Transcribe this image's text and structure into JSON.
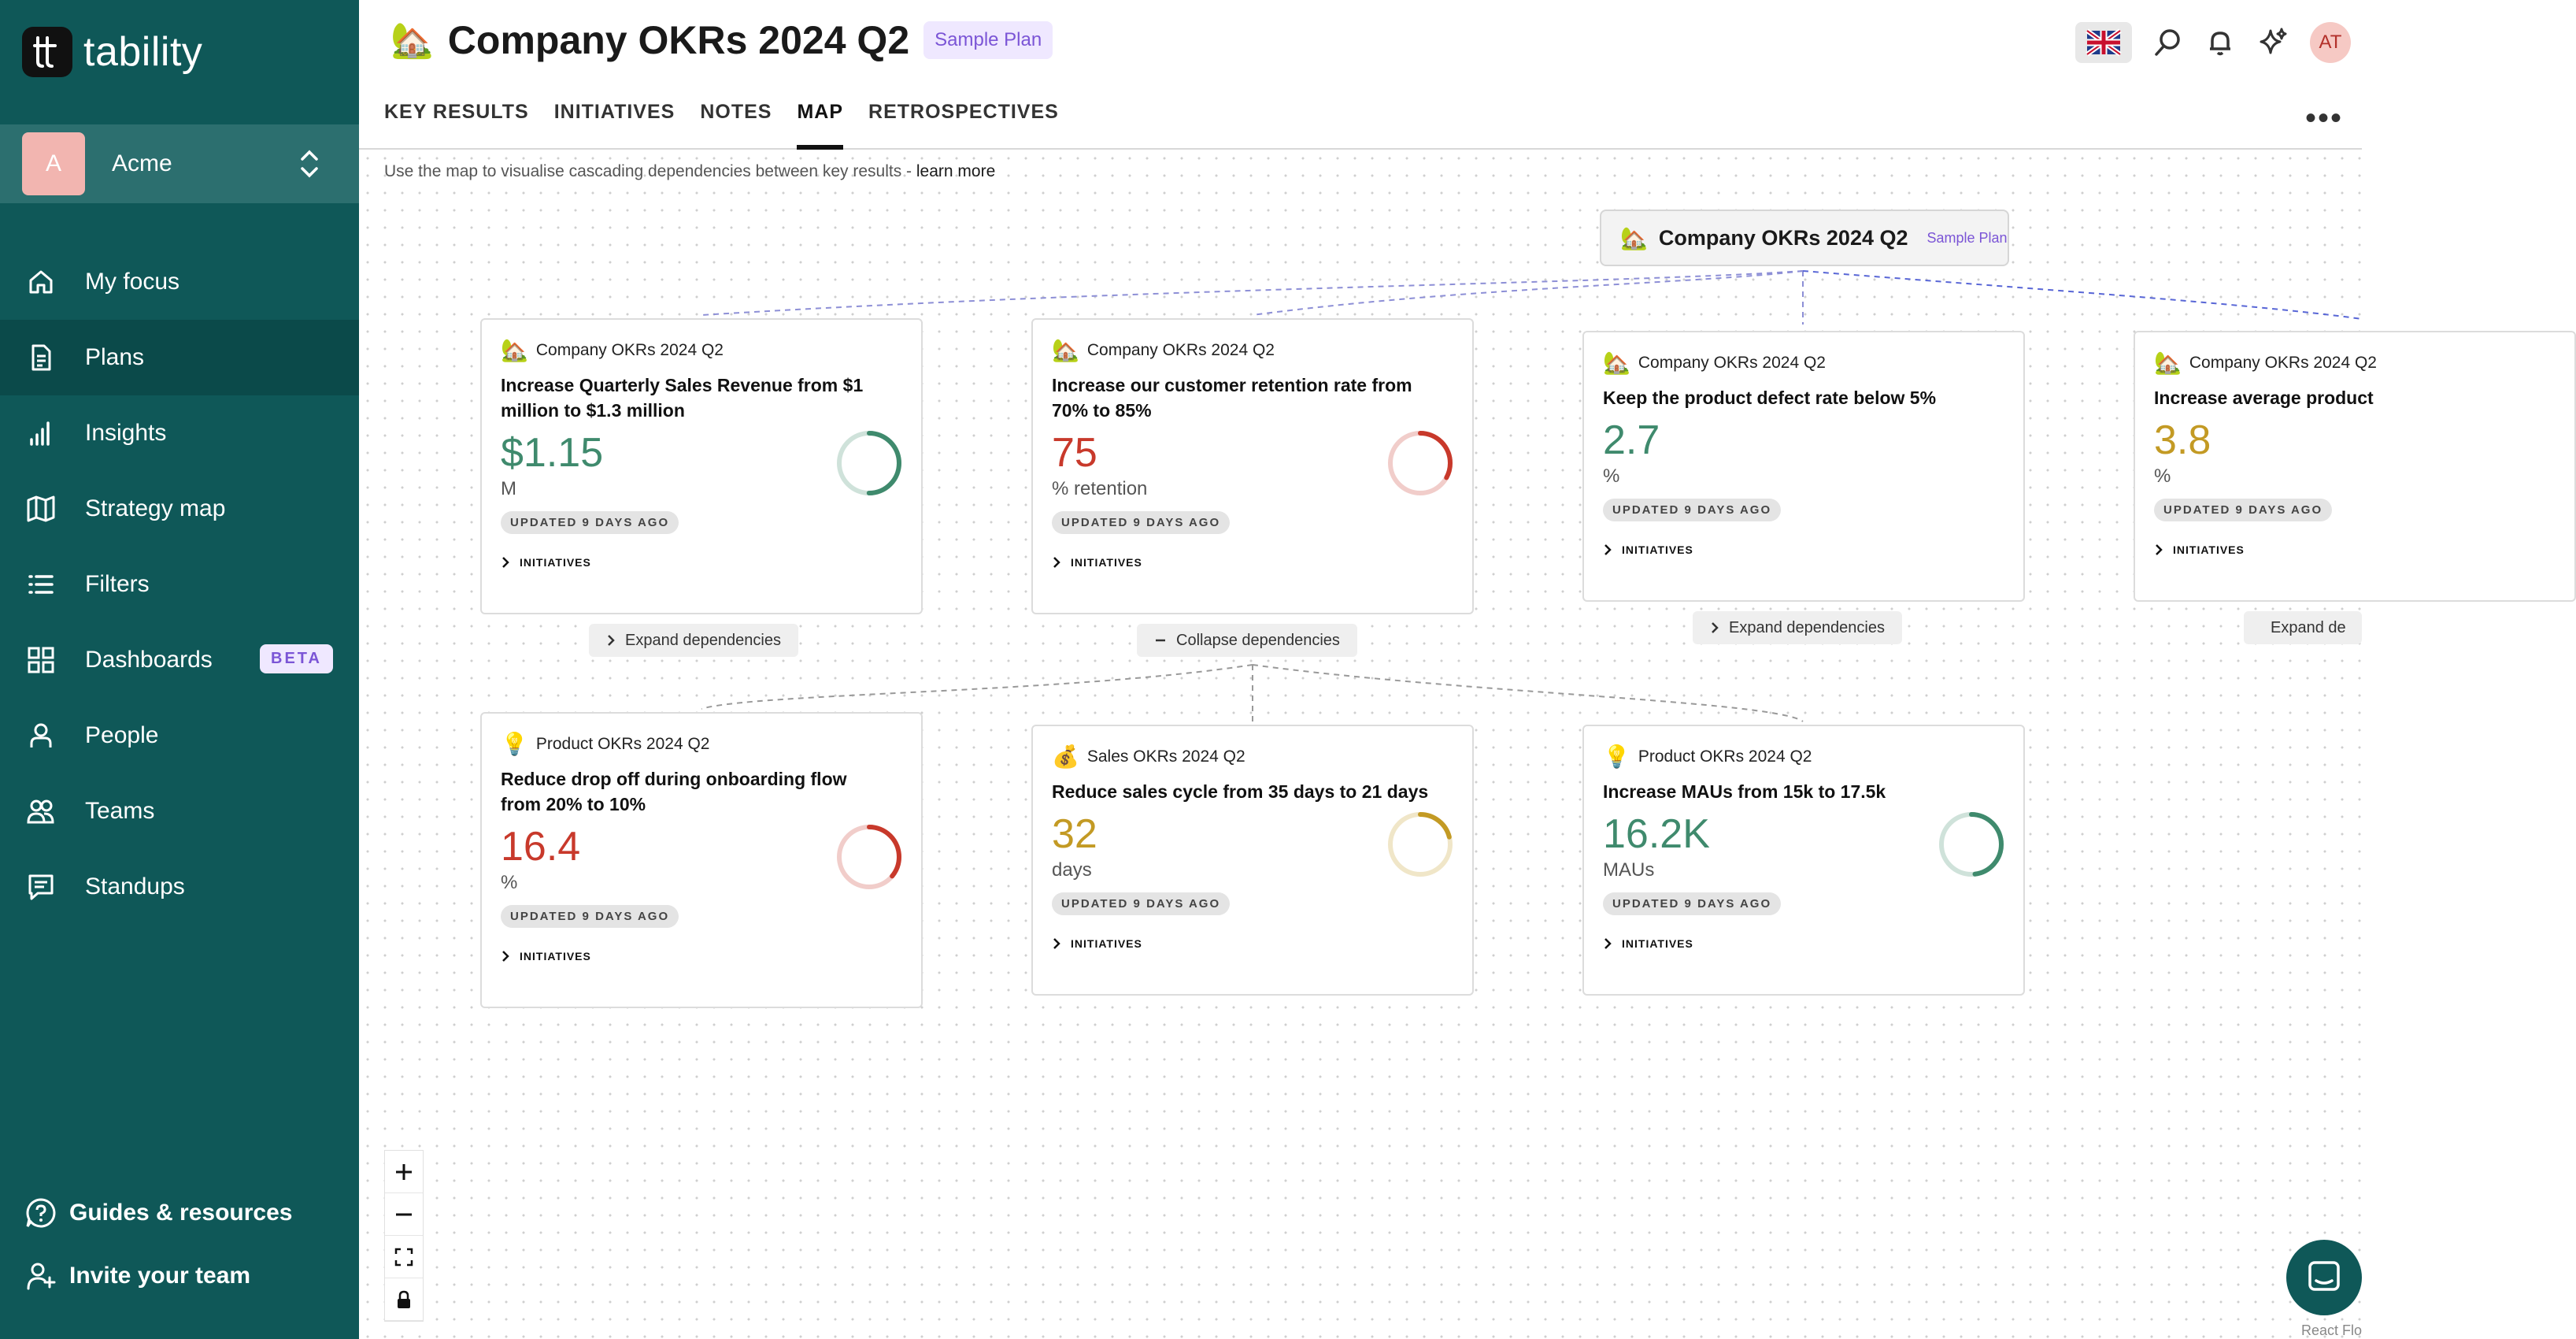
{
  "brand": {
    "name": "tability"
  },
  "workspace": {
    "initial": "A",
    "name": "Acme"
  },
  "sidebar": {
    "items": [
      {
        "label": "My focus",
        "icon": "home-icon"
      },
      {
        "label": "Plans",
        "icon": "document-icon",
        "active": true
      },
      {
        "label": "Insights",
        "icon": "bar-chart-icon"
      },
      {
        "label": "Strategy map",
        "icon": "map-icon"
      },
      {
        "label": "Filters",
        "icon": "list-icon"
      },
      {
        "label": "Dashboards",
        "icon": "grid-icon",
        "badge": "BETA"
      },
      {
        "label": "People",
        "icon": "person-icon"
      },
      {
        "label": "Teams",
        "icon": "people-icon"
      },
      {
        "label": "Standups",
        "icon": "chat-icon"
      }
    ],
    "bottom": [
      {
        "label": "Guides & resources",
        "icon": "help-icon"
      },
      {
        "label": "Invite your team",
        "icon": "add-user-icon"
      }
    ]
  },
  "header": {
    "emoji": "🏡",
    "title": "Company OKRs 2024 Q2",
    "tag": "Sample Plan",
    "tabs": [
      "KEY RESULTS",
      "INITIATIVES",
      "NOTES",
      "MAP",
      "RETROSPECTIVES"
    ],
    "active_tab": "MAP",
    "user_initials": "AT",
    "more": "•••"
  },
  "map": {
    "hint": "Use the map to visualise cascading dependencies between key results - ",
    "hint_link": "learn more",
    "root": {
      "emoji": "🏡",
      "title": "Company OKRs 2024 Q2",
      "tag": "Sample Plan"
    },
    "updated_label": "UPDATED 9 DAYS AGO",
    "initiatives_label": "INITIATIVES",
    "cards": [
      {
        "plan_emoji": "🏡",
        "plan": "Company OKRs 2024 Q2",
        "title": "Increase Quarterly Sales Revenue from $1 million to $1.3 million",
        "value": "$1.15",
        "unit": "M",
        "color": "#3f8a6d",
        "progress": 0.5
      },
      {
        "plan_emoji": "🏡",
        "plan": "Company OKRs 2024 Q2",
        "title": "Increase our customer retention rate from 70% to 85%",
        "value": "75",
        "unit": "% retention",
        "color": "#c8392b",
        "progress": 0.33
      },
      {
        "plan_emoji": "🏡",
        "plan": "Company OKRs 2024 Q2",
        "title": "Keep the product defect rate below 5%",
        "value": "2.7",
        "unit": "%",
        "color": "#3f8a6d"
      },
      {
        "plan_emoji": "🏡",
        "plan": "Company OKRs 2024 Q2",
        "title": "Increase average product",
        "value": "3.8",
        "unit": "%",
        "color": "#c39a24"
      },
      {
        "plan_emoji": "💡",
        "plan": "Product OKRs 2024 Q2",
        "title": "Reduce drop off during onboarding flow from 20% to 10%",
        "value": "16.4",
        "unit": "%",
        "color": "#c8392b",
        "progress": 0.36
      },
      {
        "plan_emoji": "💰",
        "plan": "Sales OKRs 2024 Q2",
        "title": "Reduce sales cycle from 35 days to 21 days",
        "value": "32",
        "unit": "days",
        "color": "#c39a24",
        "progress": 0.21
      },
      {
        "plan_emoji": "💡",
        "plan": "Product OKRs 2024 Q2",
        "title": "Increase MAUs from 15k to 17.5k",
        "value": "16.2K",
        "unit": "MAUs",
        "color": "#3f8a6d",
        "progress": 0.48
      }
    ],
    "expand_label": "Expand dependencies",
    "expand_partial": "Expand de",
    "collapse_label": "Collapse dependencies",
    "react_flow": "React Flo"
  }
}
